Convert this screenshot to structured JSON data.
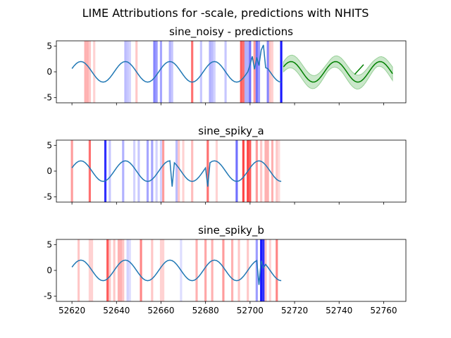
{
  "figure": {
    "title": "LIME Attributions for -scale, predictions with NHITS"
  },
  "colors": {
    "signal": "#1f77b4",
    "prediction": "#008000",
    "band": "#2ca02c",
    "positive": "#ff0000",
    "negative": "#0000ff"
  },
  "chart_data": [
    {
      "type": "line",
      "title": "sine_noisy - predictions",
      "xlim": [
        52613,
        52770
      ],
      "ylim": [
        -6,
        6
      ],
      "yticks": [
        -5,
        0,
        5
      ],
      "xticks": [
        52620,
        52640,
        52660,
        52680,
        52700,
        52720,
        52740,
        52760
      ],
      "x_tick_labels_shown": false,
      "series": [
        {
          "kind": "signal",
          "x_range": [
            52620,
            52714
          ],
          "period": 20,
          "amplitude": 2,
          "phase_at_start": 0.32,
          "overrides": [
            [
              52700,
              1.4
            ],
            [
              52701,
              3.0
            ],
            [
              52702,
              0.5
            ],
            [
              52703,
              2.8
            ],
            [
              52704,
              1.2
            ],
            [
              52705,
              4.2
            ],
            [
              52706,
              5.2
            ],
            [
              52707,
              0.8
            ]
          ]
        },
        {
          "kind": "prediction",
          "x_range": [
            52715,
            52764
          ],
          "period": 20,
          "amplitude": 2,
          "phase_at_start": 0.5
        },
        {
          "kind": "prediction-tick",
          "x": [
            52747,
            52751
          ],
          "y": [
            -0.5,
            1.4
          ]
        }
      ],
      "attributions": [
        [
          52626,
          0.3
        ],
        [
          52627,
          0.3
        ],
        [
          52628,
          0.2
        ],
        [
          52630,
          0.15
        ],
        [
          52644,
          -0.25
        ],
        [
          52645,
          -0.2
        ],
        [
          52646,
          -0.15
        ],
        [
          52649,
          0.2
        ],
        [
          52657,
          -0.5
        ],
        [
          52658,
          -0.4
        ],
        [
          52660,
          -0.35
        ],
        [
          52664,
          -0.3
        ],
        [
          52665,
          -0.2
        ],
        [
          52674,
          0.6
        ],
        [
          52678,
          -0.2
        ],
        [
          52682,
          -0.3
        ],
        [
          52683,
          -0.25
        ],
        [
          52684,
          -0.15
        ],
        [
          52689,
          -0.2
        ],
        [
          52696,
          0.7
        ],
        [
          52697,
          0.6
        ],
        [
          52698,
          -0.3
        ],
        [
          52699,
          -0.3
        ],
        [
          52700,
          -0.6
        ],
        [
          52702,
          0.4
        ],
        [
          52703,
          -0.6
        ],
        [
          52704,
          -0.4
        ],
        [
          52708,
          -0.5
        ],
        [
          52709,
          0.2
        ],
        [
          52710,
          0.15
        ],
        [
          52714,
          -1.0
        ]
      ]
    },
    {
      "type": "line",
      "title": "sine_spiky_a",
      "xlim": [
        52613,
        52770
      ],
      "ylim": [
        -6,
        6
      ],
      "yticks": [
        -5,
        0,
        5
      ],
      "xticks": [
        52620,
        52640,
        52660,
        52680,
        52700,
        52720,
        52740,
        52760
      ],
      "x_tick_labels_shown": false,
      "series": [
        {
          "kind": "signal",
          "x_range": [
            52620,
            52714
          ],
          "period": 20,
          "amplitude": 2,
          "phase_at_start": 0.32,
          "overrides": [
            [
              52665,
              -3.0
            ],
            [
              52681,
              -3.0
            ]
          ]
        }
      ],
      "attributions": [
        [
          52620,
          0.4
        ],
        [
          52628,
          0.6
        ],
        [
          52635,
          -0.9
        ],
        [
          52637,
          -0.2
        ],
        [
          52643,
          -0.3
        ],
        [
          52648,
          -0.15
        ],
        [
          52650,
          -0.2
        ],
        [
          52654,
          -0.35
        ],
        [
          52656,
          -0.35
        ],
        [
          52658,
          -0.15
        ],
        [
          52660,
          -0.15
        ],
        [
          52661,
          0.4
        ],
        [
          52667,
          -0.25
        ],
        [
          52668,
          0.2
        ],
        [
          52670,
          0.15
        ],
        [
          52674,
          0.25
        ],
        [
          52681,
          0.6
        ],
        [
          52685,
          0.15
        ],
        [
          52694,
          -0.6
        ],
        [
          52697,
          0.8
        ],
        [
          52699,
          0.8
        ],
        [
          52700,
          0.7
        ],
        [
          52703,
          0.4
        ],
        [
          52705,
          0.2
        ],
        [
          52707,
          0.3
        ],
        [
          52708,
          0.3
        ],
        [
          52710,
          0.3
        ],
        [
          52712,
          0.2
        ],
        [
          52713,
          0.1
        ]
      ]
    },
    {
      "type": "line",
      "title": "sine_spiky_b",
      "xlim": [
        52613,
        52770
      ],
      "ylim": [
        -6,
        6
      ],
      "yticks": [
        -5,
        0,
        5
      ],
      "xticks": [
        52620,
        52640,
        52660,
        52680,
        52700,
        52720,
        52740,
        52760
      ],
      "series": [
        {
          "kind": "signal",
          "x_range": [
            52620,
            52714
          ],
          "period": 20,
          "amplitude": 2,
          "phase_at_start": 0.32,
          "overrides": [
            [
              52704,
              -2.8
            ],
            [
              52706,
              0.5
            ]
          ]
        }
      ],
      "attributions": [
        [
          52623,
          0.2
        ],
        [
          52628,
          0.15
        ],
        [
          52629,
          0.15
        ],
        [
          52636,
          0.7
        ],
        [
          52637,
          0.2
        ],
        [
          52639,
          0.2
        ],
        [
          52641,
          0.3
        ],
        [
          52642,
          0.3
        ],
        [
          52643,
          0.2
        ],
        [
          52645,
          -0.15
        ],
        [
          52646,
          -0.1
        ],
        [
          52651,
          0.5
        ],
        [
          52656,
          0.2
        ],
        [
          52660,
          0.15
        ],
        [
          52661,
          0.15
        ],
        [
          52669,
          -0.1
        ],
        [
          52676,
          0.3
        ],
        [
          52680,
          0.35
        ],
        [
          52683,
          0.3
        ],
        [
          52688,
          0.4
        ],
        [
          52692,
          0.3
        ],
        [
          52695,
          0.2
        ],
        [
          52699,
          0.2
        ],
        [
          52703,
          -0.4
        ],
        [
          52705,
          -1.0
        ],
        [
          52706,
          -0.9
        ],
        [
          52707,
          0.2
        ],
        [
          52709,
          0.15
        ],
        [
          52712,
          0.5
        ]
      ]
    }
  ]
}
